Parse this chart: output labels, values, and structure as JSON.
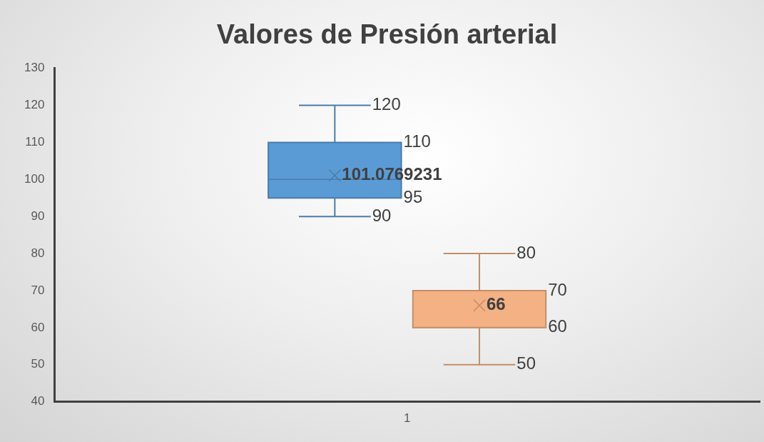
{
  "chart_data": {
    "type": "box",
    "title": "Valores de Presión arterial",
    "categories": [
      "1"
    ],
    "series": [
      {
        "color": "#5b9bd5",
        "boxes": [
          {
            "low": 90,
            "q1": 95,
            "median": 100,
            "q3": 110,
            "high": 120,
            "mean": 101.0769231
          }
        ]
      },
      {
        "color": "#f4b183",
        "boxes": [
          {
            "low": 50,
            "q1": 60,
            "median": 60,
            "q3": 70,
            "high": 80,
            "mean": 66
          }
        ]
      }
    ],
    "annotations": [
      "120",
      "110",
      "101.0769231",
      "95",
      "90",
      "80",
      "70",
      "66",
      "60",
      "50"
    ],
    "ylim": [
      40,
      130
    ],
    "yticks": [
      40,
      50,
      60,
      70,
      80,
      90,
      100,
      110,
      120,
      130
    ],
    "grid": false,
    "legend": false,
    "marker": "cross"
  }
}
